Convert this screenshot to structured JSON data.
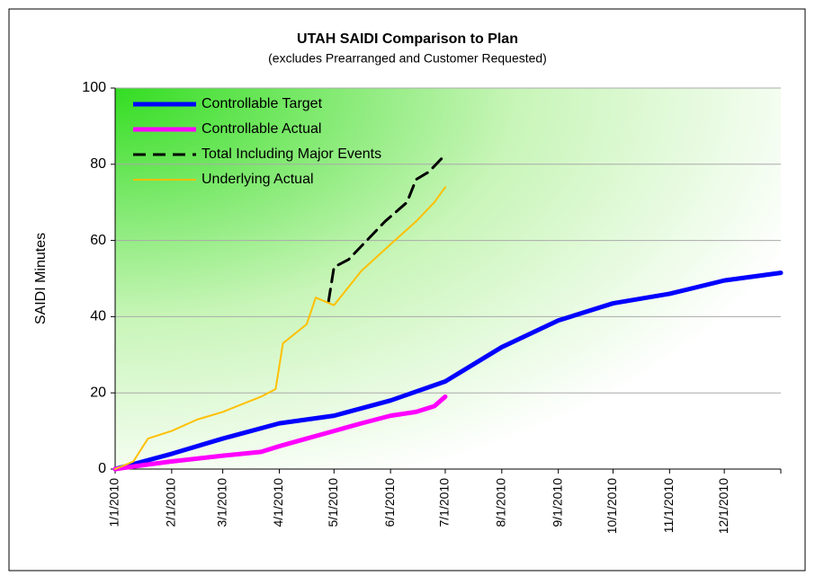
{
  "chart_data": {
    "type": "line",
    "title": "UTAH SAIDI Comparison to Plan",
    "subtitle": "(excludes Prearranged and Customer Requested)",
    "y_label": "SAIDI Minutes",
    "xlim": [
      0,
      365
    ],
    "xticks": [
      {
        "value": 0,
        "label": "1/1/2010"
      },
      {
        "value": 31,
        "label": "2/1/2010"
      },
      {
        "value": 59,
        "label": "3/1/2010"
      },
      {
        "value": 90,
        "label": "4/1/2010"
      },
      {
        "value": 120,
        "label": "5/1/2010"
      },
      {
        "value": 151,
        "label": "6/1/2010"
      },
      {
        "value": 181,
        "label": "7/1/2010"
      },
      {
        "value": 212,
        "label": "8/1/2010"
      },
      {
        "value": 243,
        "label": "9/1/2010"
      },
      {
        "value": 273,
        "label": "10/1/2010"
      },
      {
        "value": 304,
        "label": "11/1/2010"
      },
      {
        "value": 334,
        "label": "12/1/2010"
      }
    ],
    "ylim": [
      0,
      100
    ],
    "yticks": [
      0,
      20,
      40,
      60,
      80,
      100
    ],
    "grid": true,
    "legend": "upper left",
    "series": [
      {
        "name": "Controllable Target",
        "color": "#0000ff",
        "width": 5,
        "dash": false,
        "x": [
          0,
          31,
          59,
          90,
          120,
          151,
          181,
          212,
          243,
          273,
          304,
          334,
          365
        ],
        "values": [
          0,
          4,
          8,
          12,
          14,
          18,
          23,
          32,
          39,
          43.5,
          46,
          49.5,
          51.5
        ]
      },
      {
        "name": "Controllable Actual",
        "color": "#ff00ff",
        "width": 5,
        "dash": false,
        "x": [
          0,
          15,
          31,
          59,
          80,
          90,
          105,
          120,
          135,
          151,
          165,
          175,
          181
        ],
        "values": [
          0,
          1,
          2,
          3.5,
          4.5,
          6,
          8,
          10,
          12,
          14,
          15,
          16.5,
          19
        ]
      },
      {
        "name": "Total Including Major Events",
        "color": "#000000",
        "width": 3,
        "dash": true,
        "x": [
          117,
          120,
          128,
          140,
          148,
          160,
          165,
          172,
          180
        ],
        "values": [
          44,
          53,
          55,
          61,
          65,
          70,
          76,
          78,
          82
        ]
      },
      {
        "name": "Underlying Actual",
        "color": "#ffc000",
        "width": 2,
        "dash": false,
        "x": [
          0,
          10,
          18,
          31,
          45,
          59,
          80,
          88,
          92,
          105,
          110,
          120,
          135,
          151,
          165,
          175,
          181
        ],
        "values": [
          0,
          2,
          8,
          10,
          13,
          15,
          19,
          21,
          33,
          38,
          45,
          43,
          52,
          59,
          65,
          70,
          74
        ]
      }
    ]
  }
}
